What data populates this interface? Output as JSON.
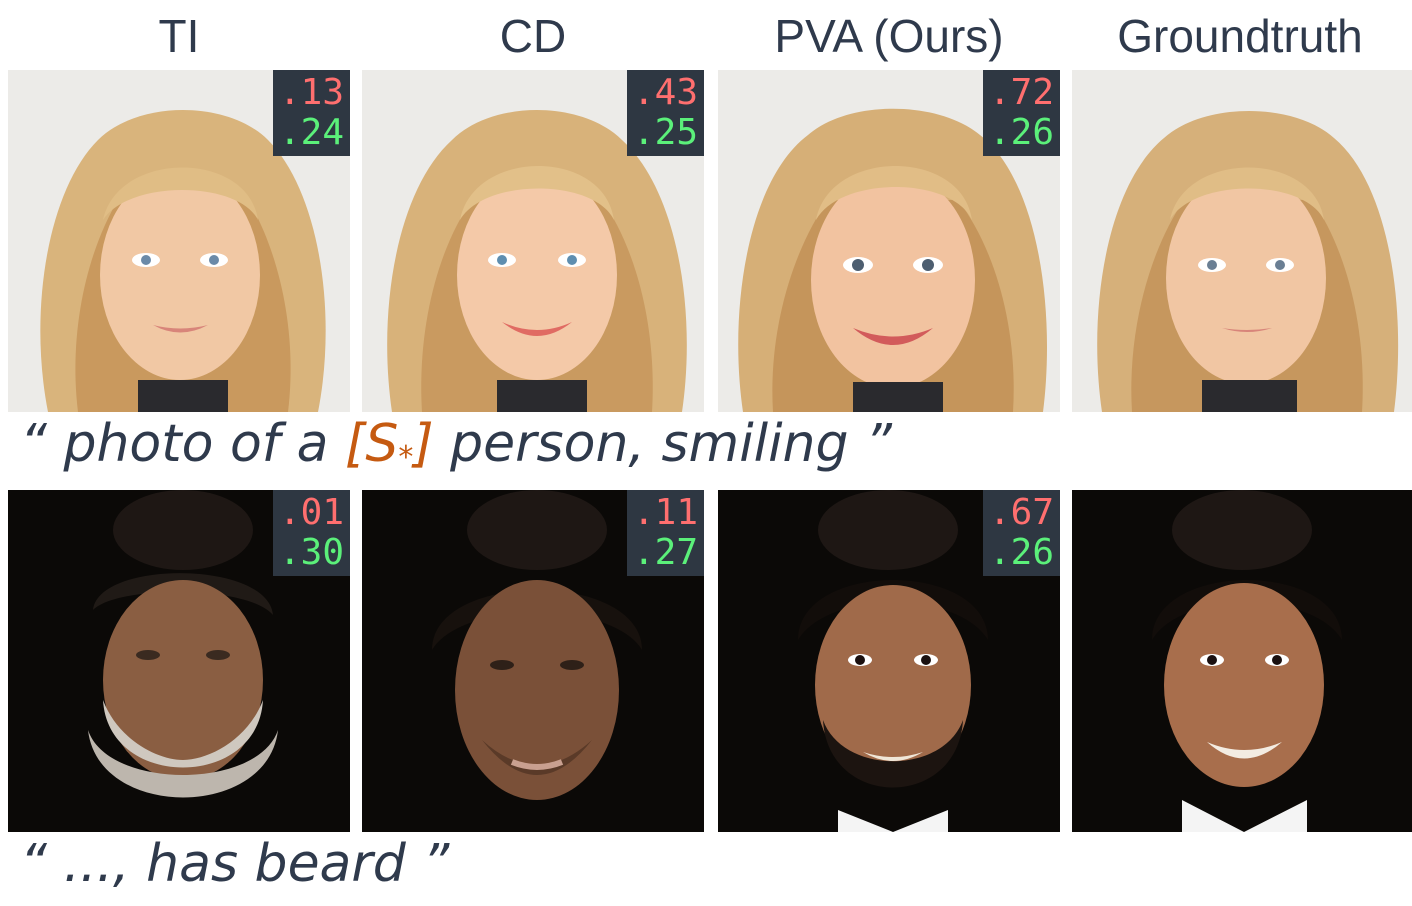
{
  "columns": [
    "TI",
    "CD",
    "PVA (Ours)",
    "Groundtruth"
  ],
  "rows": [
    {
      "theme": "blonde",
      "caption": {
        "open": "“ photo of a ",
        "token_open": "[S",
        "token_sub": "*",
        "token_close": "]",
        "rest": " person, smiling ”"
      },
      "scores": [
        {
          "id": ".13",
          "clip": ".24"
        },
        {
          "id": ".43",
          "clip": ".25"
        },
        {
          "id": ".72",
          "clip": ".26"
        }
      ]
    },
    {
      "theme": "dark",
      "caption": {
        "open": "“ ..., has beard ”"
      },
      "scores": [
        {
          "id": ".01",
          "clip": ".30"
        },
        {
          "id": ".11",
          "clip": ".27"
        },
        {
          "id": ".67",
          "clip": ".26"
        }
      ]
    }
  ],
  "colors": {
    "text": "#2f3a4c",
    "token": "#c55a11",
    "id_score": "#ff6f6f",
    "clip_score": "#5bf07a",
    "badge_bg": "#2e3742"
  }
}
